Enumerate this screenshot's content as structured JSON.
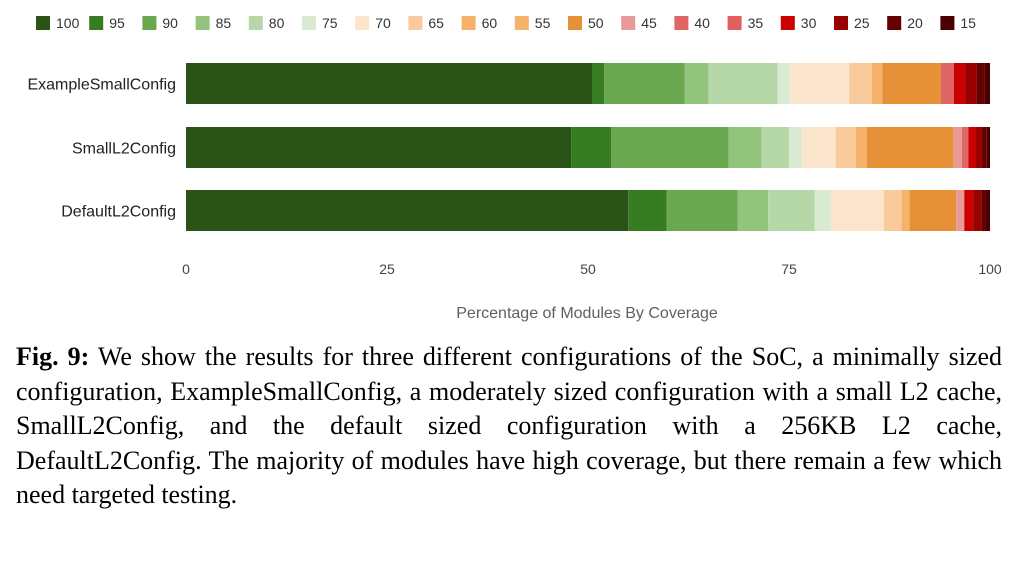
{
  "chart_data": {
    "type": "bar",
    "orientation": "horizontal",
    "stacked": true,
    "title": "",
    "xlabel": "Percentage of Modules By Coverage",
    "ylabel": "",
    "xlim": [
      0,
      100
    ],
    "x_ticks": [
      "0",
      "25",
      "50",
      "75",
      "100"
    ],
    "grid": false,
    "legend_position": "top",
    "categories": [
      "ExampleSmallConfig",
      "SmallL2Config",
      "DefaultL2Config"
    ],
    "series": [
      {
        "name": "100",
        "color": "#2a5318",
        "values": [
          50.5,
          47.9,
          55.0
        ]
      },
      {
        "name": "95",
        "color": "#377c22",
        "values": [
          1.5,
          5.0,
          4.8
        ]
      },
      {
        "name": "90",
        "color": "#6aa84f",
        "values": [
          10.0,
          14.6,
          8.8
        ]
      },
      {
        "name": "85",
        "color": "#93c47d",
        "values": [
          3.0,
          4.1,
          3.8
        ]
      },
      {
        "name": "80",
        "color": "#b6d7a8",
        "values": [
          8.6,
          3.4,
          5.8
        ]
      },
      {
        "name": "75",
        "color": "#d9ead3",
        "values": [
          1.5,
          1.6,
          2.0
        ]
      },
      {
        "name": "70",
        "color": "#fce5cd",
        "values": [
          7.4,
          4.2,
          6.6
        ]
      },
      {
        "name": "65",
        "color": "#f9cb9c",
        "values": [
          2.8,
          2.5,
          2.2
        ]
      },
      {
        "name": "60",
        "color": "#f6b26b",
        "values": [
          1.3,
          1.4,
          1.0
        ]
      },
      {
        "name": "55",
        "color": "#f4b26b",
        "values": [
          0.0,
          0.0,
          0.0
        ]
      },
      {
        "name": "50",
        "color": "#e69138",
        "values": [
          7.3,
          10.8,
          5.8
        ]
      },
      {
        "name": "45",
        "color": "#ea9999",
        "values": [
          0.0,
          1.0,
          1.0
        ]
      },
      {
        "name": "40",
        "color": "#e06666",
        "values": [
          1.6,
          0.8,
          0.0
        ]
      },
      {
        "name": "35",
        "color": "#e06060",
        "values": [
          0.0,
          0.0,
          0.0
        ]
      },
      {
        "name": "30",
        "color": "#cc0000",
        "values": [
          1.4,
          0.9,
          1.1
        ]
      },
      {
        "name": "25",
        "color": "#990000",
        "values": [
          1.4,
          0.8,
          1.0
        ]
      },
      {
        "name": "20",
        "color": "#660000",
        "values": [
          1.0,
          0.6,
          0.6
        ]
      },
      {
        "name": "15",
        "color": "#4a0000",
        "values": [
          0.7,
          0.4,
          0.5
        ]
      }
    ]
  },
  "caption": {
    "label": "Fig. 9:",
    "text": " We show the results for three different configurations of the SoC, a minimally sized configuration, ExampleSmallConfig, a moderately sized configuration with a small L2 cache, SmallL2Config, and the default sized configuration with a 256KB L2 cache, DefaultL2Config. The majority of modules have high coverage, but there remain a few which need targeted testing."
  }
}
